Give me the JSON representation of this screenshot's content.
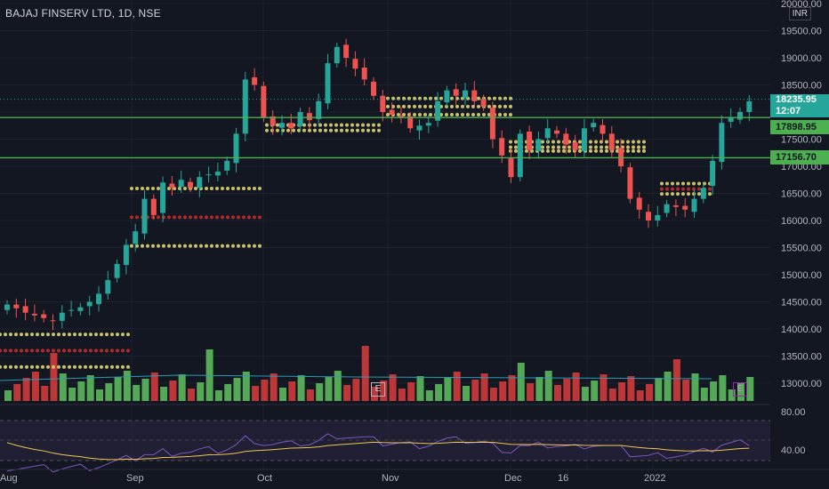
{
  "header": {
    "symbol_title": "BAJAJ FINSERV LTD, 1D, NSE",
    "currency": "INR"
  },
  "price_axis": {
    "labels": [
      "20000.00",
      "19500.00",
      "19000.00",
      "18500.00",
      "18000.00",
      "17500.00",
      "17000.00",
      "16500.00",
      "16000.00",
      "15500.00",
      "15000.00",
      "14500.00",
      "14000.00",
      "13500.00",
      "13000.00"
    ]
  },
  "rsi_axis": {
    "labels": [
      "80.00",
      "40.00"
    ]
  },
  "time_axis": {
    "labels": [
      "Aug",
      "Sep",
      "Oct",
      "Nov",
      "Dec",
      "16",
      "2022"
    ]
  },
  "badges": {
    "current_price": "18235.95",
    "countdown": "12:07",
    "level_upper": "17898.95",
    "level_lower": "17156.70"
  },
  "event_markers": {
    "label": "E"
  },
  "colors": {
    "up": "#26a69a",
    "down": "#ef5350",
    "level": "#4caf50",
    "rsi": "#7e57c2",
    "rsi_ma": "#f0c850"
  },
  "chart_data": {
    "type": "candlestick",
    "title": "BAJAJ FINSERV LTD, 1D, NSE",
    "price_range": [
      13000,
      20000
    ],
    "levels": [
      17898.95,
      17156.7
    ],
    "last_price": 18235.95,
    "x_tick_labels": [
      "Aug",
      "Sep",
      "Oct",
      "Nov",
      "Dec",
      "16",
      "2022"
    ],
    "candles_close": [
      14450,
      14380,
      14300,
      14250,
      14200,
      14150,
      14300,
      14350,
      14400,
      14500,
      14650,
      14900,
      15200,
      15550,
      15800,
      16400,
      16100,
      16700,
      16600,
      16750,
      16600,
      16800,
      16850,
      16900,
      17100,
      17600,
      18600,
      18500,
      17900,
      17750,
      17800,
      17700,
      18000,
      17850,
      18200,
      18900,
      19200,
      19000,
      18800,
      18600,
      18300,
      18000,
      17950,
      17900,
      17700,
      17750,
      17800,
      18200,
      18400,
      18300,
      18400,
      18200,
      18100,
      17500,
      17200,
      16800,
      17600,
      17300,
      17500,
      17700,
      17600,
      17400,
      17300,
      17700,
      17800,
      17600,
      17300,
      17000,
      16400,
      16200,
      16000,
      16100,
      16300,
      16250,
      16200,
      16400,
      16600,
      17100,
      17800,
      17900,
      18000,
      18200
    ],
    "rsi": {
      "ylim": [
        20,
        90
      ],
      "ticks": [
        80,
        40
      ]
    }
  }
}
